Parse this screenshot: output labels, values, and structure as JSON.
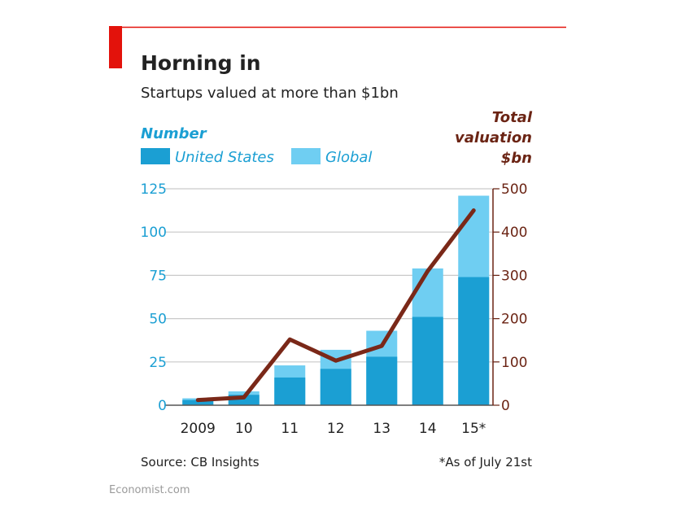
{
  "header": {
    "title": "Horning in",
    "subtitle": "Startups valued at more than $1bn",
    "accent_color": "#e3120b"
  },
  "legend": {
    "left_axis_title": "Number",
    "items": [
      {
        "label": "United States",
        "color": "#1b9fd3"
      },
      {
        "label": "Global",
        "color": "#6fcef2"
      }
    ],
    "right_axis_title_lines": [
      "Total",
      "valuation",
      "$bn"
    ]
  },
  "chart_data": {
    "type": "bar",
    "title": "Horning in",
    "subtitle": "Startups valued at more than $1bn",
    "categories": [
      "2009",
      "10",
      "11",
      "12",
      "13",
      "14",
      "15*"
    ],
    "series": [
      {
        "name": "United States",
        "kind": "bar",
        "axis": "left",
        "color": "#1b9fd3",
        "values": [
          3,
          6,
          16,
          21,
          28,
          51,
          74
        ]
      },
      {
        "name": "Global",
        "kind": "bar-total",
        "axis": "left",
        "color": "#6fcef2",
        "values": [
          4,
          8,
          23,
          32,
          43,
          79,
          121
        ]
      },
      {
        "name": "Total valuation $bn",
        "kind": "line",
        "axis": "right",
        "color": "#7a2818",
        "values": [
          12,
          18,
          152,
          103,
          137,
          310,
          450
        ]
      }
    ],
    "left_axis": {
      "label": "Number",
      "ticks": [
        "125",
        "100",
        "75",
        "50",
        "25",
        "0"
      ],
      "ylim": [
        0,
        125
      ],
      "tick_values": [
        125,
        100,
        75,
        50,
        25,
        0
      ]
    },
    "right_axis": {
      "label": "Total valuation $bn",
      "ticks": [
        "500",
        "400",
        "300",
        "200",
        "100",
        "0"
      ],
      "ylim": [
        0,
        500
      ],
      "tick_values": [
        500,
        400,
        300,
        200,
        100,
        0
      ]
    },
    "grid": true
  },
  "footer": {
    "source": "Source: CB Insights",
    "note": "*As of July 21st",
    "brand": "Economist.com"
  }
}
